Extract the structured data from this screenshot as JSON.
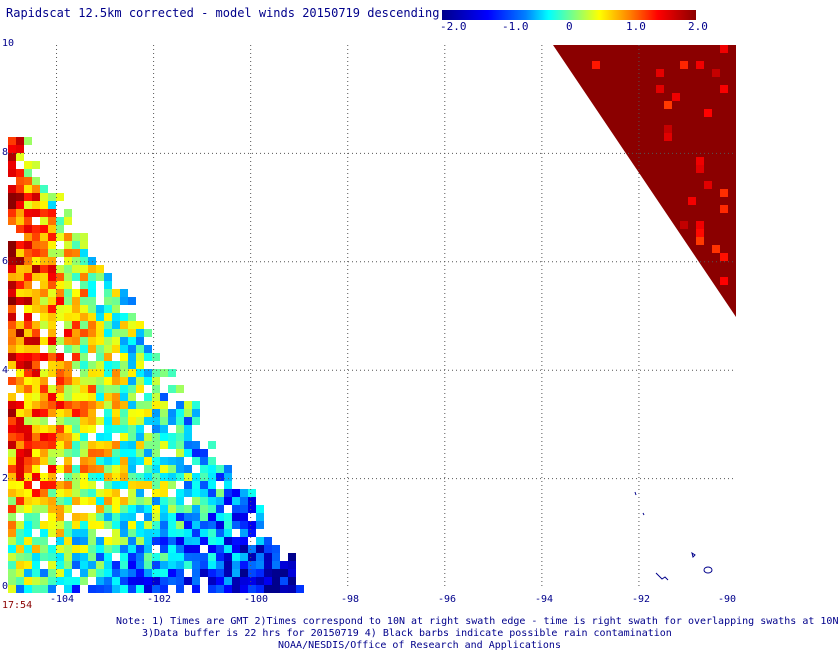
{
  "header": {
    "title": "Rapidscat 12.5km corrected - model winds 20150719 descending"
  },
  "colorbar": {
    "ticks": [
      "-2.0",
      "-1.0",
      "0",
      "1.0",
      "2.0"
    ],
    "tick_values": [
      -2.0,
      -1.0,
      0,
      1.0,
      2.0
    ],
    "range": [
      -2.0,
      2.0
    ]
  },
  "axes": {
    "x_ticks": [
      "-104",
      "-102",
      "-100",
      "-98",
      "-96",
      "-94",
      "-92",
      "-90"
    ],
    "x_values": [
      -104,
      -102,
      -100,
      -98,
      -96,
      -94,
      -92,
      -90
    ],
    "y_ticks": [
      "0",
      "2",
      "4",
      "6",
      "8",
      "10"
    ],
    "y_values": [
      0,
      2,
      4,
      6,
      8,
      10
    ],
    "lon_range": [
      -105,
      -90
    ],
    "lat_range": [
      0,
      10
    ]
  },
  "footer": {
    "timestamp": "17:54",
    "note_line1": "Note: 1) Times are GMT 2)Times correspond to 10N at right swath edge - time is right swath for overlapping swaths at 10N",
    "note_line2": "3)Data buffer is 22 hrs for 20150719 4) Black barbs indicate possible rain contamination",
    "note_line3": "NOAA/NESDIS/Office of Research and Applications"
  },
  "colors": {
    "text": "#00008b",
    "timestamp": "#8b0000"
  }
}
